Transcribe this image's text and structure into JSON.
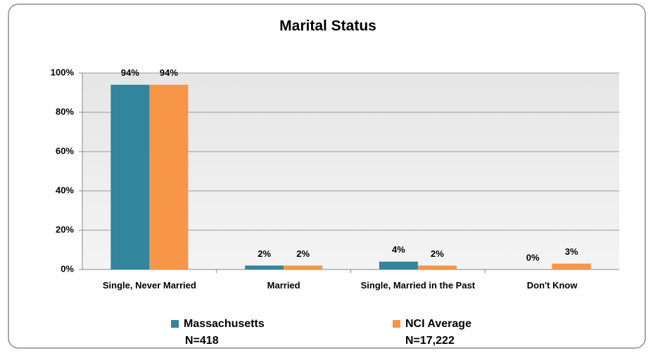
{
  "chart_data": {
    "type": "bar",
    "title": "Marital Status",
    "categories": [
      "Single, Never Married",
      "Married",
      "Single, Married in the Past",
      "Don't Know"
    ],
    "series": [
      {
        "name": "Massachusetts",
        "note": "N=418",
        "color": "#31859c",
        "values": [
          94,
          2,
          4,
          0
        ],
        "value_labels": [
          "94%",
          "2%",
          "4%",
          "0%"
        ]
      },
      {
        "name": "NCI Average",
        "note": "N=17,222",
        "color": "#f79646",
        "values": [
          94,
          2,
          2,
          3
        ],
        "value_labels": [
          "94%",
          "2%",
          "2%",
          "3%"
        ]
      }
    ],
    "ylim": [
      0,
      100
    ],
    "yticks": [
      {
        "value": 0,
        "label": "0%"
      },
      {
        "value": 20,
        "label": "20%"
      },
      {
        "value": 40,
        "label": "40%"
      },
      {
        "value": 60,
        "label": "60%"
      },
      {
        "value": 80,
        "label": "80%"
      },
      {
        "value": 100,
        "label": "100%"
      }
    ],
    "grid": true,
    "legend": "bottom"
  }
}
